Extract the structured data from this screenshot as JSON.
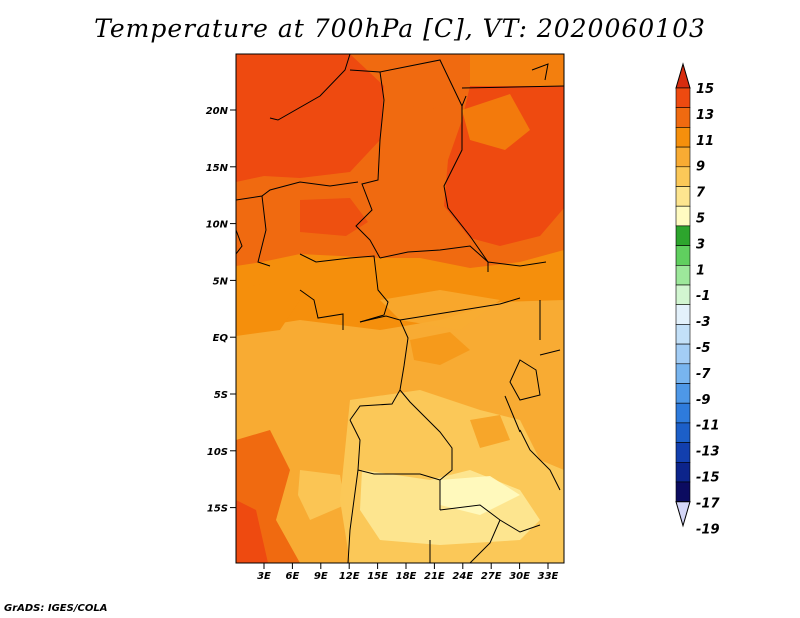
{
  "title": "Temperature at 700hPa [C], VT: 2020060103",
  "credit": "GrADS: IGES/COLA",
  "lat_labels": [
    "20N",
    "15N",
    "10N",
    "5N",
    "EQ",
    "5S",
    "10S",
    "15S"
  ],
  "lon_labels": [
    "3E",
    "6E",
    "9E",
    "12E",
    "15E",
    "18E",
    "21E",
    "24E",
    "27E",
    "30E",
    "33E"
  ],
  "colorbar": {
    "labels": [
      "15",
      "13",
      "11",
      "9",
      "7",
      "5",
      "3",
      "1",
      "-1",
      "-3",
      "-5",
      "-7",
      "-9",
      "-11",
      "-13",
      "-15",
      "-17",
      "-19"
    ],
    "colors": [
      "#d72c0f",
      "#ee4a10",
      "#f06a10",
      "#f58f0c",
      "#f8ab33",
      "#fbc858",
      "#fde58f",
      "#fffbc1",
      "#2da52d",
      "#60cf5f",
      "#9de89b",
      "#d2f6d1",
      "#e3f1fb",
      "#c3e0f8",
      "#a3cdf5",
      "#78b5ef",
      "#4e98e7",
      "#2e7bdc",
      "#1c5fc8",
      "#123fae",
      "#0c248b",
      "#0b0b60",
      "#d4d6f7"
    ]
  }
}
